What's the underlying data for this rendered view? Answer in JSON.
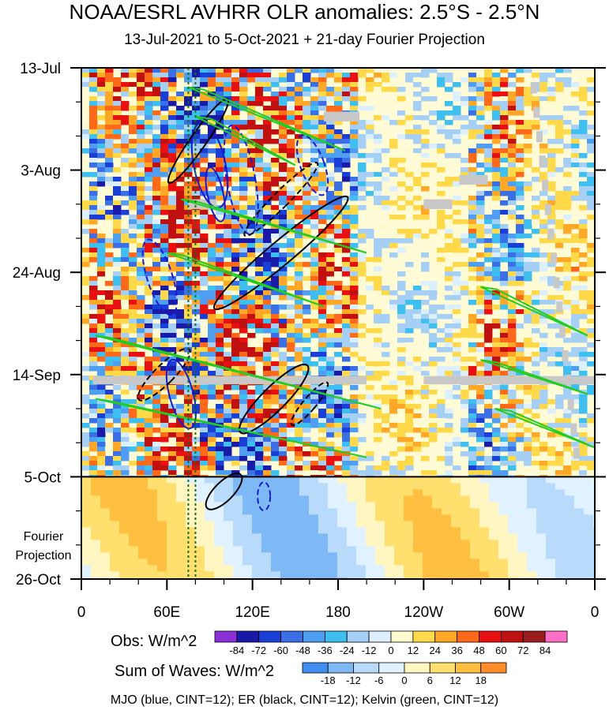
{
  "title": "NOAA/ESRL AVHRR OLR anomalies: 2.5°S - 2.5°N",
  "subtitle": "13-Jul-2021 to 5-Oct-2021 + 21-day Fourier Projection",
  "chart_data": {
    "type": "heatmap",
    "x_ticks": [
      "0",
      "60E",
      "120E",
      "180",
      "120W",
      "60W",
      "0"
    ],
    "x_tick_values": [
      0,
      60,
      120,
      180,
      240,
      300,
      360
    ],
    "xlim": [
      0,
      360
    ],
    "y_ticks": [
      "13-Jul",
      "3-Aug",
      "24-Aug",
      "14-Sep",
      "5-Oct",
      "26-Oct"
    ],
    "y_tick_days": [
      0,
      21,
      42,
      63,
      84,
      105
    ],
    "ylim_days": [
      0,
      105
    ],
    "projection_start_day": 84,
    "projection_label": [
      "Fourier",
      "Projection"
    ],
    "obs_legend": {
      "label": "Obs: W/m^2",
      "levels": [
        "-84",
        "-72",
        "-60",
        "-48",
        "-36",
        "-24",
        "-12",
        "0",
        "12",
        "24",
        "36",
        "48",
        "60",
        "72",
        "84"
      ],
      "colors": [
        "#8b2fd6",
        "#1a1aa8",
        "#1a3fd6",
        "#3a6fe6",
        "#4f9ef2",
        "#3fbef0",
        "#a6cff5",
        "#dcefff",
        "#fffbd0",
        "#ffd94a",
        "#ffa726",
        "#ff6a1a",
        "#e81010",
        "#c01010",
        "#9c1d1d",
        "#ff6ec7"
      ]
    },
    "sow_legend": {
      "label": "Sum of Waves: W/m^2",
      "levels": [
        "-18",
        "-12",
        "-6",
        "0",
        "6",
        "12",
        "18"
      ],
      "colors": [
        "#3f8ef0",
        "#7fb9f5",
        "#b9dbfb",
        "#e0f1ff",
        "#fff6c2",
        "#ffdf6e",
        "#ffbf40",
        "#ff8c28"
      ]
    },
    "contours": [
      {
        "name": "MJO",
        "color": "#1a1acd",
        "cint": 12
      },
      {
        "name": "ER",
        "color": "#000000",
        "cint": 12
      },
      {
        "name": "Kelvin",
        "color": "#22cc22",
        "cint": 12
      }
    ],
    "reference_lon": [
      75,
      80
    ]
  },
  "footer": "MJO (blue, CINT=12); ER (black, CINT=12); Kelvin (green, CINT=12)"
}
